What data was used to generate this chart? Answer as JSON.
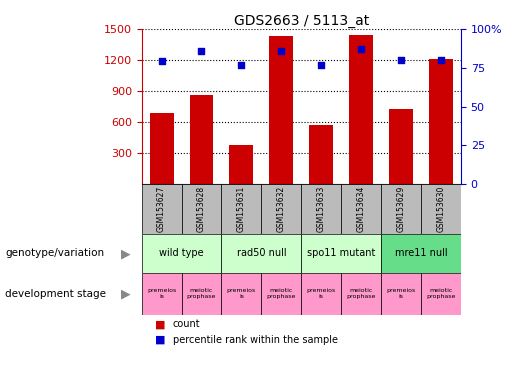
{
  "title": "GDS2663 / 5113_at",
  "samples": [
    "GSM153627",
    "GSM153628",
    "GSM153631",
    "GSM153632",
    "GSM153633",
    "GSM153634",
    "GSM153629",
    "GSM153630"
  ],
  "counts": [
    690,
    860,
    380,
    1430,
    570,
    1440,
    730,
    1210
  ],
  "percentiles": [
    79,
    86,
    77,
    86,
    77,
    87,
    80,
    80
  ],
  "ylim_left": [
    0,
    1500
  ],
  "ylim_right": [
    0,
    100
  ],
  "yticks_left": [
    300,
    600,
    900,
    1200,
    1500
  ],
  "yticks_right": [
    0,
    25,
    50,
    75,
    100
  ],
  "bar_color": "#cc0000",
  "dot_color": "#0000cc",
  "bar_width": 0.6,
  "genotype_groups": [
    {
      "label": "wild type",
      "start": 0,
      "end": 2,
      "color": "#ccffcc"
    },
    {
      "label": "rad50 null",
      "start": 2,
      "end": 4,
      "color": "#ccffcc"
    },
    {
      "label": "spo11 mutant",
      "start": 4,
      "end": 6,
      "color": "#ccffcc"
    },
    {
      "label": "mre11 null",
      "start": 6,
      "end": 8,
      "color": "#66dd88"
    }
  ],
  "stage_labels": [
    "premeios\nis",
    "meiotic\nprophase",
    "premeios\nis",
    "meiotic\nprophase",
    "premeios\nis",
    "meiotic\nprophase",
    "premeios\nis",
    "meiotic\nprophase"
  ],
  "stage_color": "#ff99cc",
  "sample_row_color": "#bbbbbb",
  "left_label_color": "#cc0000",
  "right_label_color": "#0000cc"
}
